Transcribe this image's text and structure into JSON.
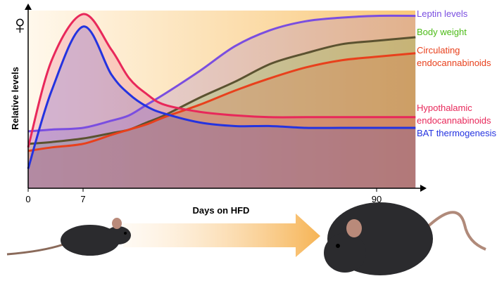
{
  "chart_data": {
    "type": "line",
    "symbol": "♀",
    "xlabel": "Days on HFD",
    "ylabel": "Relative levels",
    "x": [
      0,
      3,
      7,
      15,
      20,
      25,
      30,
      40,
      50,
      60,
      70,
      80,
      90,
      101
    ],
    "xlim": [
      0,
      101
    ],
    "xticks": [
      0,
      7,
      90
    ],
    "ylim": [
      0,
      1
    ],
    "series": [
      {
        "name": "Leptin levels",
        "color": "#7a4ee0",
        "values": [
          0.32,
          0.33,
          0.34,
          0.38,
          0.41,
          0.47,
          0.53,
          0.66,
          0.8,
          0.89,
          0.94,
          0.96,
          0.97,
          0.97
        ]
      },
      {
        "name": "Body weight",
        "color": "#4cbb17",
        "line_color": "#5b5230",
        "values": [
          0.25,
          0.26,
          0.28,
          0.31,
          0.33,
          0.37,
          0.41,
          0.51,
          0.6,
          0.7,
          0.76,
          0.81,
          0.83,
          0.85
        ]
      },
      {
        "name": "Circulating endocannabinoids",
        "color": "#e8401c",
        "values": [
          0.21,
          0.23,
          0.25,
          0.3,
          0.33,
          0.36,
          0.4,
          0.47,
          0.55,
          0.62,
          0.68,
          0.72,
          0.74,
          0.76
        ]
      },
      {
        "name": "Hypothalamic endocannabinoids",
        "color": "#e8285a",
        "values": [
          0.23,
          0.72,
          0.98,
          0.78,
          0.62,
          0.53,
          0.47,
          0.43,
          0.41,
          0.4,
          0.4,
          0.4,
          0.4,
          0.4
        ]
      },
      {
        "name": "BAT thermogenesis",
        "color": "#2433e0",
        "values": [
          0.11,
          0.55,
          0.91,
          0.64,
          0.53,
          0.46,
          0.42,
          0.37,
          0.35,
          0.35,
          0.34,
          0.34,
          0.34,
          0.34
        ]
      }
    ]
  }
}
